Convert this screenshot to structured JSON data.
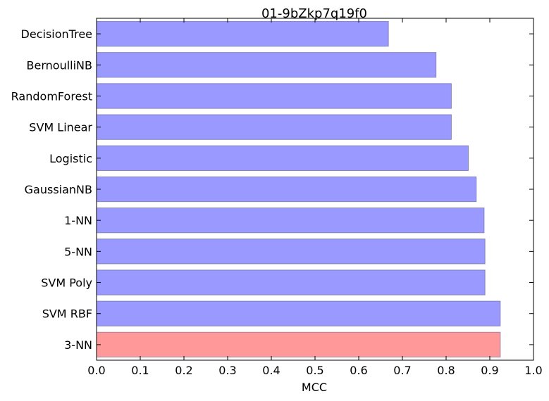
{
  "chart_data": {
    "type": "bar",
    "orientation": "horizontal",
    "title": "01-9bZkp7q19f0",
    "xlabel": "MCC",
    "ylabel": "",
    "xlim": [
      0.0,
      1.0
    ],
    "xticks": [
      "0.0",
      "0.1",
      "0.2",
      "0.3",
      "0.4",
      "0.5",
      "0.6",
      "0.7",
      "0.8",
      "0.9",
      "1.0"
    ],
    "categories": [
      "DecisionTree",
      "BernoulliNB",
      "RandomForest",
      "SVM Linear",
      "Logistic",
      "GaussianNB",
      "1-NN",
      "5-NN",
      "SVM Poly",
      "SVM RBF",
      "3-NN"
    ],
    "values": [
      0.668,
      0.777,
      0.812,
      0.812,
      0.851,
      0.869,
      0.887,
      0.889,
      0.889,
      0.924,
      0.924
    ],
    "colors": [
      "#9999ff",
      "#9999ff",
      "#9999ff",
      "#9999ff",
      "#9999ff",
      "#9999ff",
      "#9999ff",
      "#9999ff",
      "#9999ff",
      "#9999ff",
      "#ff9999"
    ],
    "grid": false,
    "legend": "none"
  }
}
